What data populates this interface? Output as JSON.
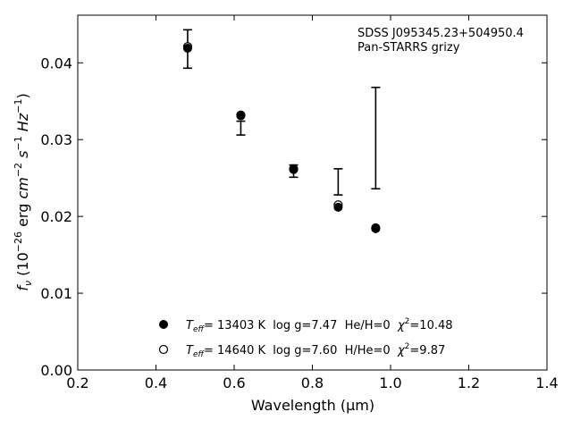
{
  "chart_data": {
    "type": "scatter",
    "title": "",
    "xlabel": "Wavelength (μm)",
    "ylabel": "f_ν (10^-26 erg cm^-2 s^-1 Hz^-1)",
    "xlim": [
      0.2,
      1.4
    ],
    "ylim": [
      0.0,
      0.0462
    ],
    "xticks": [
      "0.2",
      "0.4",
      "0.6",
      "0.8",
      "1.0",
      "1.2",
      "1.4"
    ],
    "xtick_values": [
      0.2,
      0.4,
      0.6,
      0.8,
      1.0,
      1.2,
      1.4
    ],
    "yticks": [
      "0.00",
      "0.01",
      "0.02",
      "0.03",
      "0.04"
    ],
    "ytick_values": [
      0.0,
      0.01,
      0.02,
      0.03,
      0.04
    ],
    "grid": false,
    "annotation": {
      "line1": "SDSS J095345.23+504950.4",
      "line2": "Pan-STARRS grizy"
    },
    "observed": {
      "x": [
        0.481,
        0.617,
        0.752,
        0.866,
        0.962
      ],
      "y": [
        0.0418,
        0.0315,
        0.0259,
        0.0245,
        0.0302
      ],
      "yerr": [
        0.0025,
        0.0009,
        0.0008,
        0.0017,
        0.0066
      ]
    },
    "series": [
      {
        "name": "He/H=0",
        "marker": "filled-circle",
        "x": [
          0.481,
          0.617,
          0.752,
          0.866,
          0.962
        ],
        "y": [
          0.0419,
          0.0331,
          0.0261,
          0.0212,
          0.0184
        ]
      },
      {
        "name": "H/He=0",
        "marker": "open-circle",
        "x": [
          0.481,
          0.617,
          0.752,
          0.866,
          0.962
        ],
        "y": [
          0.0421,
          0.0332,
          0.0262,
          0.0215,
          0.0185
        ]
      }
    ],
    "legend": {
      "placement": "bottom-center",
      "entries": [
        {
          "teff_label": "T",
          "teff_sub": "eff",
          "text": "= 13403 K  log g=7.47  He/H=0  ",
          "chi": "χ",
          "chi_sup": "2",
          "chi_val": "=10.48"
        },
        {
          "teff_label": "T",
          "teff_sub": "eff",
          "text": "= 14640 K  log g=7.60  H/He=0  ",
          "chi": "χ",
          "chi_sup": "2",
          "chi_val": "=9.87"
        }
      ]
    },
    "colors": {
      "axes": "#000000",
      "markers": "#000000",
      "background": "#ffffff"
    }
  }
}
